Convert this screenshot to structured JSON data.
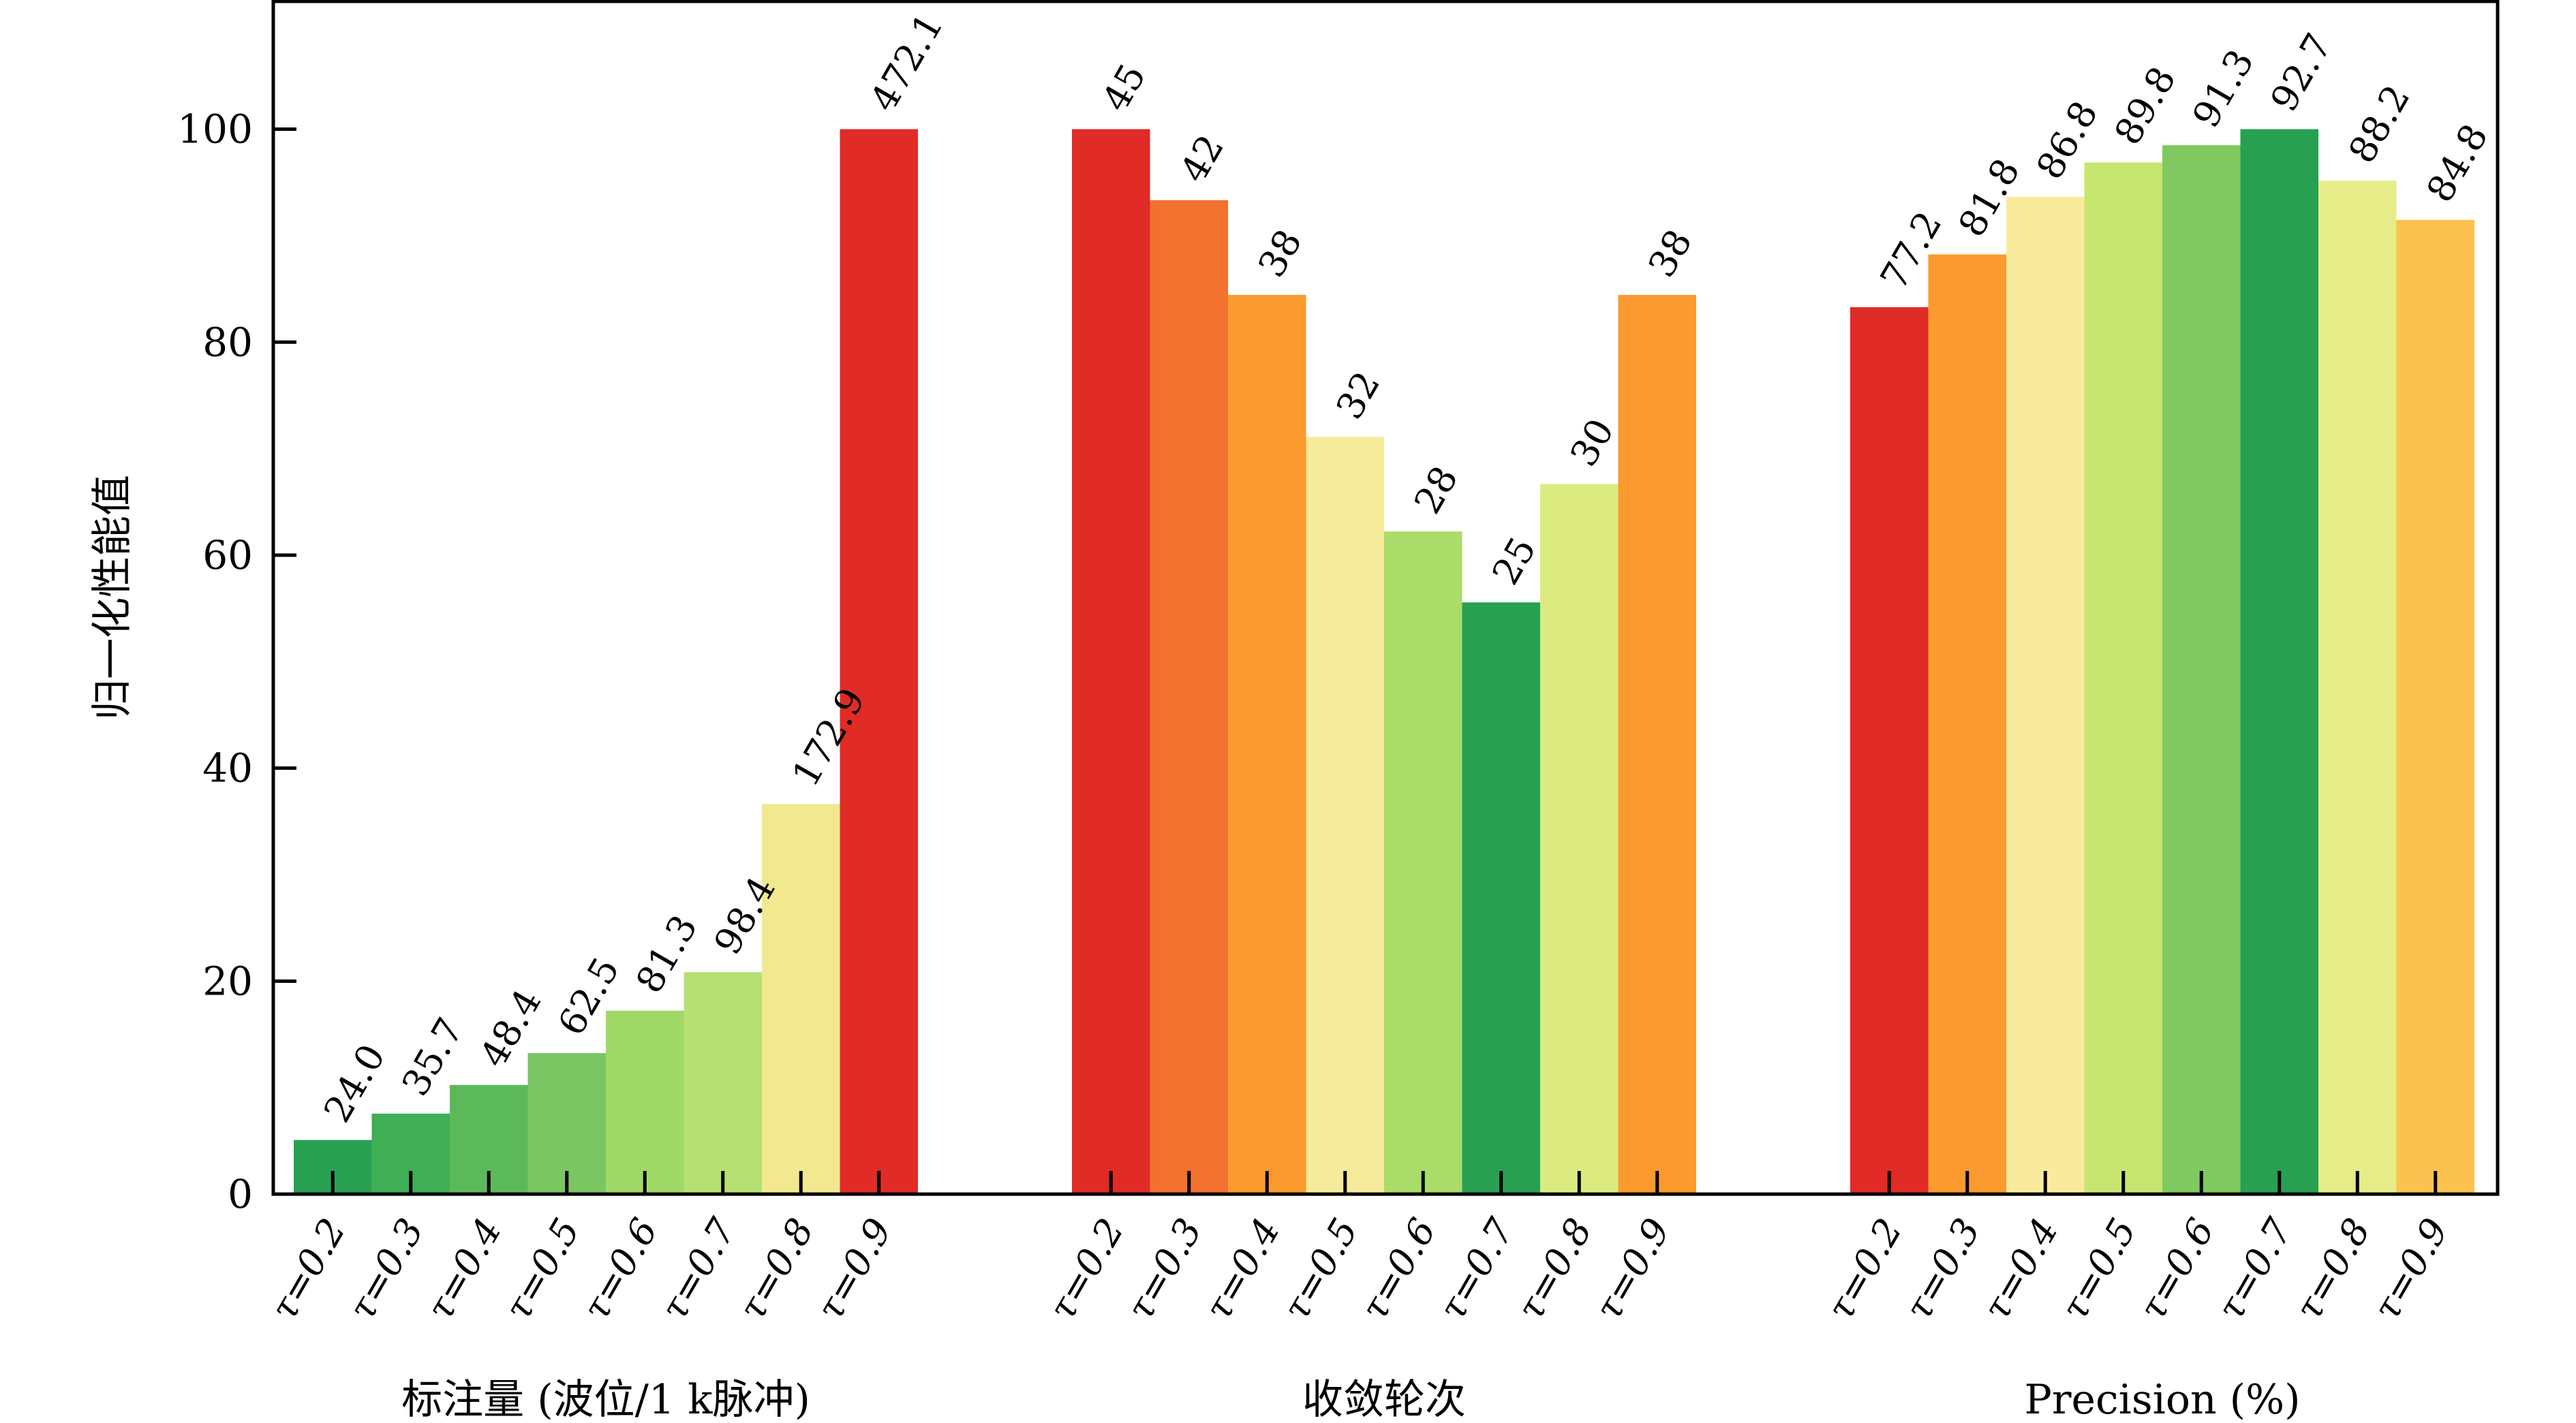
{
  "chart_data": {
    "type": "bar",
    "ylabel": "归一化性能值",
    "ylim": [
      0,
      112
    ],
    "yticks": [
      0,
      20,
      40,
      60,
      80,
      100
    ],
    "grid": false,
    "groups": [
      {
        "xlabel": "标注量 (波位/1 k脉冲)",
        "categories": [
          "τ=0.2",
          "τ=0.3",
          "τ=0.4",
          "τ=0.5",
          "τ=0.6",
          "τ=0.7",
          "τ=0.8",
          "τ=0.9"
        ],
        "raw_labels": [
          "24.0",
          "35.7",
          "48.4",
          "62.5",
          "81.3",
          "98.4",
          "172.9",
          "472.1"
        ],
        "values": [
          5.08,
          7.56,
          10.25,
          13.24,
          17.22,
          20.84,
          36.62,
          100
        ],
        "colors": [
          "#27a151",
          "#3fae55",
          "#5cb95a",
          "#7bc663",
          "#9fd866",
          "#b7e073",
          "#f2e88f",
          "#e02b26"
        ]
      },
      {
        "xlabel": "收敛轮次",
        "categories": [
          "τ=0.2",
          "τ=0.3",
          "τ=0.4",
          "τ=0.5",
          "τ=0.6",
          "τ=0.7",
          "τ=0.8",
          "τ=0.9"
        ],
        "raw_labels": [
          "45",
          "42",
          "38",
          "32",
          "28",
          "25",
          "30",
          "38"
        ],
        "values": [
          100,
          93.33,
          84.44,
          71.11,
          62.22,
          55.56,
          66.67,
          84.44
        ],
        "colors": [
          "#e02b26",
          "#f2712f",
          "#fb9a2e",
          "#f6eb9b",
          "#a9dc68",
          "#27a151",
          "#dceb80",
          "#fb9a2e"
        ]
      },
      {
        "xlabel": "Precision (%)",
        "categories": [
          "τ=0.2",
          "τ=0.3",
          "τ=0.4",
          "τ=0.5",
          "τ=0.6",
          "τ=0.7",
          "τ=0.8",
          "τ=0.9"
        ],
        "raw_labels": [
          "77.2",
          "81.8",
          "86.8",
          "89.8",
          "91.3",
          "92.7",
          "88.2",
          "84.8"
        ],
        "values": [
          83.28,
          88.24,
          93.64,
          96.87,
          98.49,
          100,
          95.15,
          91.48
        ],
        "colors": [
          "#e02b26",
          "#fb9a2e",
          "#faea9c",
          "#c7e66f",
          "#80c960",
          "#27a151",
          "#e6ec87",
          "#fbc24f"
        ]
      }
    ]
  }
}
